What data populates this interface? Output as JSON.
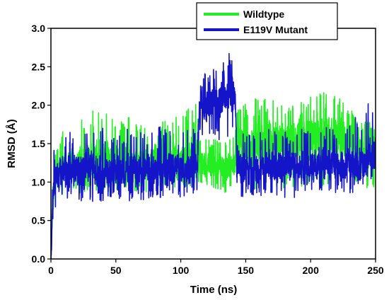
{
  "chart_data": {
    "type": "line",
    "title": "",
    "xlabel": "Time (ns)",
    "ylabel": "RMSD (Å)",
    "xlim": [
      0,
      250
    ],
    "ylim": [
      0,
      3.0
    ],
    "x_ticks": [
      "0",
      "50",
      "100",
      "150",
      "200",
      "250"
    ],
    "y_ticks": [
      "0.0",
      "0.5",
      "1.0",
      "1.5",
      "2.0",
      "2.5",
      "3.0"
    ],
    "grid": false,
    "legend_position": "top-right",
    "series": [
      {
        "name": "Wildtype",
        "color": "#22ee22",
        "x": [
          0,
          1,
          2,
          5,
          10,
          20,
          30,
          40,
          50,
          60,
          70,
          80,
          90,
          100,
          105,
          110,
          113,
          114,
          120,
          125,
          130,
          135,
          140,
          143,
          145,
          150,
          160,
          170,
          180,
          190,
          200,
          210,
          220,
          230,
          235,
          240,
          245,
          250
        ],
        "mean": [
          0.0,
          0.6,
          0.85,
          1.1,
          1.2,
          1.25,
          1.25,
          1.3,
          1.25,
          1.25,
          1.2,
          1.25,
          1.25,
          1.25,
          1.3,
          1.3,
          1.35,
          1.25,
          1.2,
          1.2,
          1.2,
          1.2,
          1.2,
          1.4,
          1.5,
          1.5,
          1.5,
          1.55,
          1.5,
          1.5,
          1.55,
          1.6,
          1.55,
          1.5,
          1.4,
          1.35,
          1.3,
          1.3
        ],
        "low": [
          0.0,
          0.3,
          0.65,
          0.75,
          0.8,
          0.85,
          0.85,
          0.85,
          0.9,
          0.85,
          0.85,
          0.85,
          0.9,
          0.9,
          0.9,
          0.95,
          0.95,
          0.9,
          0.9,
          0.85,
          0.85,
          0.85,
          0.9,
          1.0,
          1.0,
          0.95,
          0.9,
          0.95,
          0.9,
          0.9,
          0.95,
          0.9,
          0.95,
          0.95,
          0.95,
          0.9,
          0.9,
          0.95
        ],
        "high": [
          0.1,
          0.9,
          1.3,
          1.55,
          1.7,
          1.8,
          1.95,
          2.0,
          1.85,
          1.85,
          1.75,
          1.8,
          1.8,
          1.9,
          2.05,
          2.05,
          2.0,
          1.65,
          1.6,
          1.55,
          1.6,
          1.6,
          1.55,
          1.9,
          2.0,
          2.05,
          2.1,
          2.1,
          2.05,
          2.0,
          2.15,
          2.2,
          2.15,
          2.05,
          1.9,
          1.85,
          1.8,
          1.75
        ]
      },
      {
        "name": "E119V Mutant",
        "color": "#1414c8",
        "x": [
          0,
          1,
          2,
          5,
          10,
          20,
          30,
          40,
          50,
          60,
          70,
          80,
          90,
          100,
          105,
          110,
          113,
          114,
          116,
          120,
          125,
          130,
          135,
          138,
          141,
          142,
          143,
          145,
          150,
          160,
          170,
          180,
          190,
          200,
          210,
          220,
          230,
          235,
          240,
          245,
          250
        ],
        "mean": [
          0.0,
          0.5,
          0.9,
          1.1,
          1.15,
          1.15,
          1.2,
          1.15,
          1.15,
          1.15,
          1.15,
          1.2,
          1.2,
          1.15,
          1.15,
          1.15,
          1.2,
          1.9,
          2.0,
          2.0,
          2.05,
          2.05,
          2.1,
          2.15,
          2.15,
          2.0,
          1.4,
          1.2,
          1.15,
          1.15,
          1.2,
          1.2,
          1.2,
          1.2,
          1.25,
          1.2,
          1.25,
          1.2,
          1.25,
          1.35,
          1.3
        ],
        "low": [
          0.0,
          0.2,
          0.55,
          0.75,
          0.8,
          0.75,
          0.75,
          0.75,
          0.8,
          0.75,
          0.75,
          0.8,
          0.8,
          0.8,
          0.8,
          0.8,
          0.85,
          1.5,
          1.55,
          1.5,
          1.5,
          1.55,
          1.55,
          1.6,
          1.6,
          1.5,
          0.85,
          0.8,
          0.8,
          0.8,
          0.8,
          0.8,
          0.8,
          0.85,
          0.8,
          0.85,
          0.85,
          0.85,
          0.9,
          0.95,
          0.9
        ],
        "high": [
          0.1,
          0.9,
          1.4,
          1.55,
          1.65,
          1.7,
          1.7,
          1.75,
          1.65,
          1.7,
          1.65,
          1.7,
          1.75,
          1.65,
          1.7,
          1.7,
          1.75,
          2.35,
          2.45,
          2.45,
          2.5,
          2.55,
          2.6,
          2.7,
          2.65,
          2.45,
          1.85,
          1.7,
          1.6,
          1.65,
          1.7,
          1.65,
          1.7,
          1.7,
          1.75,
          1.7,
          1.8,
          1.85,
          1.9,
          2.05,
          1.95
        ]
      }
    ]
  }
}
